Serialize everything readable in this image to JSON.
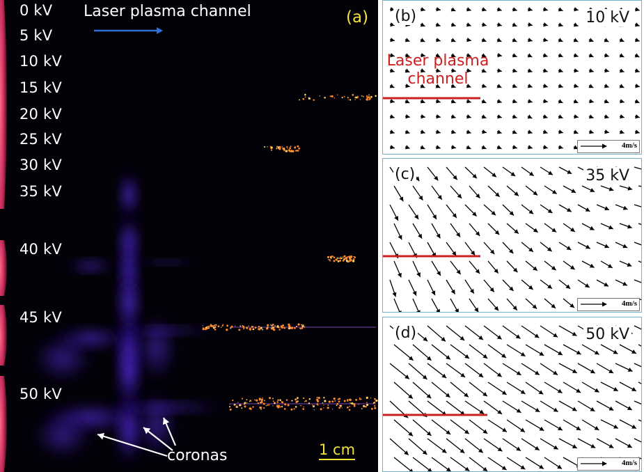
{
  "colors": {
    "background": "#030208",
    "channel": "#f3eaff",
    "corona": "#5b2cff",
    "sparks": "#ff8a2a",
    "electrode": "#e0406a",
    "arrow_blue": "#2f6fd6",
    "label_yellow": "#f2e23a",
    "channel_marker": "#cc1f1f",
    "panel_border": "#6fb2c9"
  },
  "left_panel": {
    "panel_label": "(a)",
    "title": "Laser plasma channel",
    "rows": [
      {
        "label": "0 kV",
        "corona": 0,
        "sparks": 0
      },
      {
        "label": "5 kV",
        "corona": 0,
        "sparks": 0
      },
      {
        "label": "10 kV",
        "corona": 0,
        "sparks": 0
      },
      {
        "label": "15 kV",
        "corona": 0,
        "sparks": 0.2
      },
      {
        "label": "20 kV",
        "corona": 0,
        "sparks": 0
      },
      {
        "label": "25 kV",
        "corona": 0,
        "sparks": 0.2
      },
      {
        "label": "30 kV",
        "corona": 0,
        "sparks": 0
      },
      {
        "label": "35 kV",
        "corona": 0.2,
        "sparks": 0
      },
      {
        "label": "40 kV",
        "corona": 0.5,
        "sparks": 0.3
      },
      {
        "label": "45 kV",
        "corona": 0.8,
        "sparks": 0.6
      },
      {
        "label": "50 kV",
        "corona": 1,
        "sparks": 1
      }
    ],
    "coronas_label": "coronas",
    "scale_bar": "1 cm"
  },
  "flow_panels": [
    {
      "label": "(b)",
      "voltage": "10 kV",
      "channel_annotation": [
        "Laser plasma",
        "channel"
      ],
      "scale": "4m/s"
    },
    {
      "label": "(c)",
      "voltage": "35 kV",
      "scale": "4m/s"
    },
    {
      "label": "(d)",
      "voltage": "50 kV",
      "scale": "4m/s"
    }
  ]
}
